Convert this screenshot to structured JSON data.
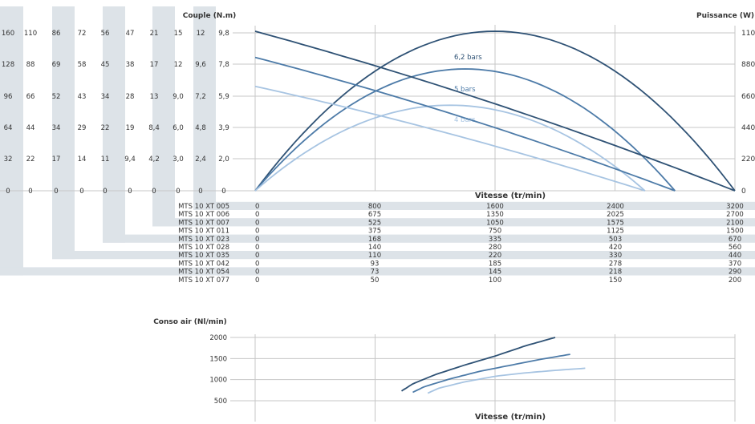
{
  "colors": {
    "dark": "#2f5275",
    "medium": "#4d7ba8",
    "light": "#a7c4e2",
    "band": "#dde3e8",
    "grid": "#c7c7c7"
  },
  "headers": {
    "couple": "Couple (N.m)",
    "puissance": "Puissance (W)",
    "vitesse": "Vitesse (tr/min)",
    "conso": "Conso air (Nl/min)",
    "vitesse_bottom": "Vitesse (tr/min)"
  },
  "couple_columns": [
    [
      "160",
      "128",
      "96",
      "64",
      "32",
      "0"
    ],
    [
      "110",
      "88",
      "66",
      "44",
      "22",
      "0"
    ],
    [
      "86",
      "69",
      "52",
      "34",
      "17",
      "0"
    ],
    [
      "72",
      "58",
      "43",
      "29",
      "14",
      "0"
    ],
    [
      "56",
      "45",
      "34",
      "22",
      "11",
      "0"
    ],
    [
      "47",
      "38",
      "28",
      "19",
      "9,4",
      "0"
    ],
    [
      "21",
      "17",
      "13",
      "8,4",
      "4,2",
      "0"
    ],
    [
      "15",
      "12",
      "9,0",
      "6,0",
      "3,0",
      "0"
    ],
    [
      "12",
      "9,6",
      "7,2",
      "4,8",
      "2,4",
      "0"
    ],
    [
      "9,8",
      "7,8",
      "5,9",
      "3,9",
      "2,0",
      "0"
    ]
  ],
  "power_ticks": [
    "1100",
    "880",
    "660",
    "440",
    "220",
    "0"
  ],
  "models": [
    {
      "name": "MTS 10 XT 005",
      "speeds": [
        "0",
        "800",
        "1600",
        "2400",
        "3200"
      ]
    },
    {
      "name": "MTS 10 XT 006",
      "speeds": [
        "0",
        "675",
        "1350",
        "2025",
        "2700"
      ]
    },
    {
      "name": "MTS 10 XT 007",
      "speeds": [
        "0",
        "525",
        "1050",
        "1575",
        "2100"
      ]
    },
    {
      "name": "MTS 10 XT 011",
      "speeds": [
        "0",
        "375",
        "750",
        "1125",
        "1500"
      ]
    },
    {
      "name": "MTS 10 XT 023",
      "speeds": [
        "0",
        "168",
        "335",
        "503",
        "670"
      ]
    },
    {
      "name": "MTS 10 XT 028",
      "speeds": [
        "0",
        "140",
        "280",
        "420",
        "560"
      ]
    },
    {
      "name": "MTS 10 XT 035",
      "speeds": [
        "0",
        "110",
        "220",
        "330",
        "440"
      ]
    },
    {
      "name": "MTS 10 XT 042",
      "speeds": [
        "0",
        "93",
        "185",
        "278",
        "370"
      ]
    },
    {
      "name": "MTS 10 XT 054",
      "speeds": [
        "0",
        "73",
        "145",
        "218",
        "290"
      ]
    },
    {
      "name": "MTS 10 XT 077",
      "speeds": [
        "0",
        "50",
        "100",
        "150",
        "200"
      ]
    }
  ],
  "chart_data": [
    {
      "type": "line",
      "x_reference": "MTS 10 XT 005",
      "xlabel": "Vitesse (tr/min)",
      "ylabel_right": "Puissance (W)",
      "ylabel_left": "Couple (N.m)",
      "xlim": [
        0,
        3200
      ],
      "ylim_right": [
        0,
        1100
      ],
      "grid": true,
      "series": [
        {
          "name": "6,2 bars",
          "kind": "power",
          "color": "dark",
          "x": [
            0,
            400,
            800,
            1200,
            1600,
            2000,
            2400,
            2800,
            3200
          ],
          "y": [
            0,
            481,
            825,
            1031,
            1100,
            1031,
            825,
            481,
            0
          ]
        },
        {
          "name": "5 bars",
          "kind": "power",
          "color": "medium",
          "x": [
            0,
            350,
            700,
            1050,
            1400,
            1750,
            2100,
            2450,
            2800
          ],
          "y": [
            0,
            368,
            630,
            788,
            840,
            788,
            630,
            368,
            0
          ]
        },
        {
          "name": "4 bars",
          "kind": "power",
          "color": "light",
          "x": [
            0,
            325,
            650,
            975,
            1300,
            1625,
            1950,
            2275,
            2600
          ],
          "y": [
            0,
            258,
            443,
            553,
            590,
            553,
            443,
            258,
            0
          ]
        },
        {
          "name": "",
          "kind": "torque",
          "color": "dark",
          "x": [
            0,
            3200
          ],
          "y": [
            1100,
            0
          ]
        },
        {
          "name": "",
          "kind": "torque",
          "color": "medium",
          "x": [
            0,
            2800
          ],
          "y": [
            920,
            0
          ]
        },
        {
          "name": "",
          "kind": "torque",
          "color": "light",
          "x": [
            0,
            2600
          ],
          "y": [
            720,
            0
          ]
        }
      ]
    },
    {
      "type": "line",
      "title": "Conso air (Nl/min)",
      "xlabel": "Vitesse (tr/min)",
      "xlim": [
        0,
        3200
      ],
      "ylim": [
        300,
        2000
      ],
      "y_ticks": [
        "2000",
        "1500",
        "1000",
        "500"
      ],
      "grid": true,
      "series": [
        {
          "name": "",
          "color": "dark",
          "x": [
            1150,
            1300,
            1600,
            2000,
            2400,
            2800,
            3200
          ],
          "y": [
            730,
            900,
            1120,
            1350,
            1560,
            1800,
            2000
          ]
        },
        {
          "name": "",
          "color": "medium",
          "x": [
            1300,
            1450,
            1800,
            2200,
            2600,
            3000,
            3400
          ],
          "y": [
            700,
            830,
            1020,
            1200,
            1340,
            1480,
            1600
          ]
        },
        {
          "name": "",
          "color": "light",
          "x": [
            1500,
            1650,
            2000,
            2400,
            2800,
            3200,
            3600
          ],
          "y": [
            680,
            800,
            950,
            1080,
            1160,
            1220,
            1270
          ]
        }
      ]
    }
  ]
}
